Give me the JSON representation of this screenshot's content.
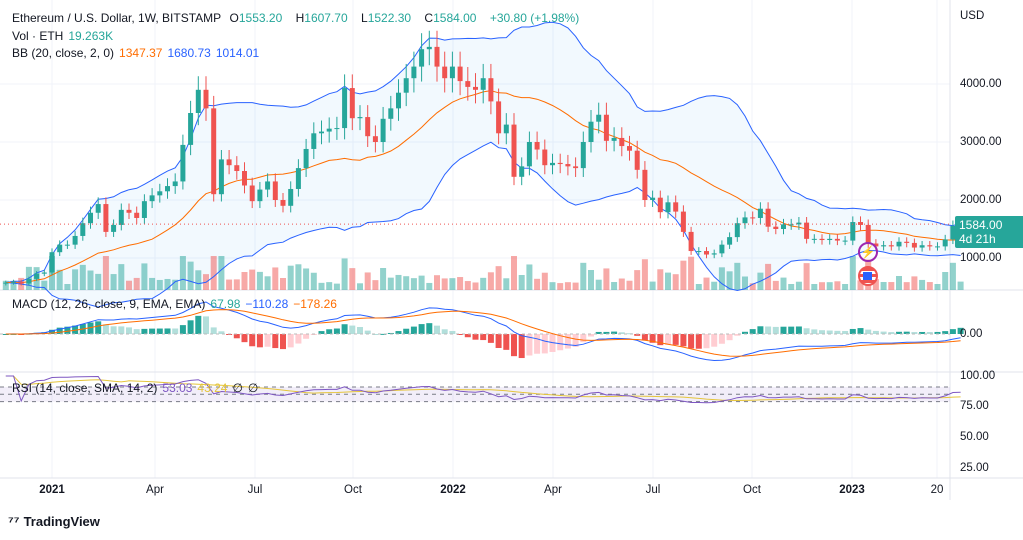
{
  "header": {
    "symbol": "Ethereum / U.S. Dollar, 1W, BITSTAMP",
    "o_label": "O",
    "open": "1553.20",
    "h_label": "H",
    "high": "1607.70",
    "l_label": "L",
    "low": "1522.30",
    "c_label": "C",
    "close": "1584.00",
    "change": "+30.80 (+1.98%)"
  },
  "vol": {
    "label": "Vol · ETH",
    "value": "19.263K"
  },
  "bb": {
    "label": "BB (20, close, 2, 0)",
    "basis": "1347.37",
    "upper": "1680.73",
    "lower": "1014.01"
  },
  "macd": {
    "label": "MACD (12, 26, close, 9, EMA, EMA)",
    "hist": "67.98",
    "macd": "−110.28",
    "signal": "−178.26",
    "zero_tick": "0.00"
  },
  "rsi": {
    "label": "RSI (14, close, SMA, 14, 2)",
    "rsi": "53.03",
    "sma": "43.24",
    "x1": "∅",
    "x2": "∅",
    "ticks": [
      "100.00",
      "75.00",
      "50.00",
      "25.00"
    ]
  },
  "price_axis": {
    "currency": "USD",
    "ticks": [
      "4000.00",
      "3000.00",
      "2000.00",
      "1000.00"
    ],
    "last_price": "1584.00",
    "countdown": "4d 21h"
  },
  "time_axis": [
    "2021",
    "Apr",
    "Jul",
    "Oct",
    "2022",
    "Apr",
    "Jul",
    "Oct",
    "2023",
    "20"
  ],
  "footer": {
    "brand": "TradingView"
  },
  "colors": {
    "up": "#26a69a",
    "down": "#ef5350",
    "bb": "#2962ff",
    "basis": "#ff6d00",
    "rsi": "#7e57c2",
    "rsi_sma": "#e5c53b"
  },
  "chart_data": {
    "type": "candlestick",
    "title": "Ethereum / U.S. Dollar, 1W, BITSTAMP",
    "ylabel": "USD",
    "ylim": [
      0,
      5000
    ],
    "first_open": 560,
    "closes": [
      575,
      590,
      560,
      640,
      730,
      750,
      1100,
      1230,
      1230,
      1380,
      1600,
      1780,
      1930,
      1450,
      1570,
      1830,
      1780,
      1690,
      1980,
      2080,
      2150,
      2240,
      2320,
      2950,
      3500,
      3900,
      3580,
      2100,
      2700,
      2600,
      2500,
      2250,
      1980,
      2180,
      2320,
      2000,
      1900,
      2190,
      2550,
      2880,
      3150,
      3180,
      3230,
      3240,
      3930,
      3410,
      3430,
      3100,
      3000,
      3400,
      3580,
      3850,
      4100,
      4300,
      4600,
      4640,
      4300,
      4100,
      4300,
      4050,
      3950,
      3900,
      4100,
      3700,
      3150,
      3300,
      2400,
      2580,
      3000,
      2870,
      2600,
      2640,
      2620,
      2580,
      2550,
      3000,
      3350,
      3470,
      3020,
      3070,
      2930,
      2850,
      2520,
      2000,
      2040,
      1790,
      1960,
      1800,
      1450,
      1120,
      1120,
      1060,
      1080,
      1230,
      1360,
      1600,
      1700,
      1690,
      1850,
      1540,
      1500,
      1580,
      1580,
      1610,
      1330,
      1330,
      1310,
      1330,
      1300,
      1300,
      1620,
      1570,
      1250,
      1200,
      1220,
      1200,
      1280,
      1260,
      1180,
      1220,
      1200,
      1200,
      1320,
      1553,
      1584
    ]
  }
}
